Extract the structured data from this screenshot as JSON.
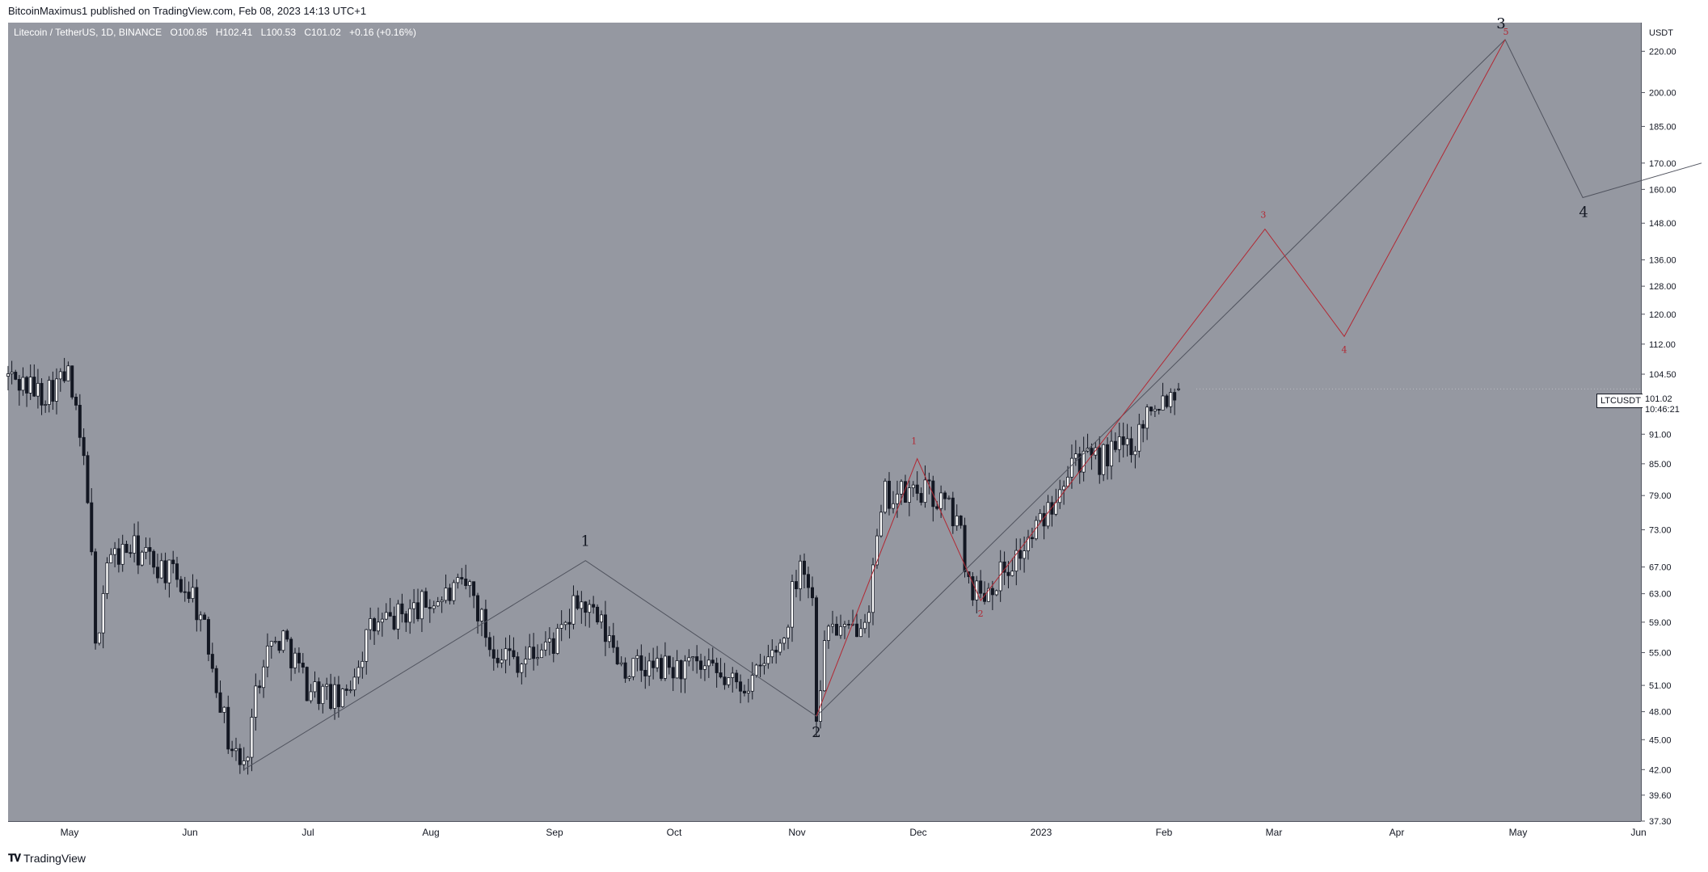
{
  "header": {
    "publish_line": "BitcoinMaximus1 published on TradingView.com, Feb 08, 2023 14:13 UTC+1"
  },
  "legend": {
    "symbol": "Litecoin / TetherUS, 1D, BINANCE",
    "open_label": "O",
    "open": "100.85",
    "high_label": "H",
    "high": "102.41",
    "low_label": "L",
    "low": "100.53",
    "close_label": "C",
    "close": "101.02",
    "change": "+0.16 (+0.16%)"
  },
  "price_axis": {
    "currency": "USDT",
    "labels": [
      "220.00",
      "200.00",
      "185.00",
      "170.00",
      "160.00",
      "148.00",
      "136.00",
      "128.00",
      "120.00",
      "112.00",
      "104.50",
      "91.00",
      "85.00",
      "79.00",
      "73.00",
      "67.00",
      "63.00",
      "59.00",
      "55.00",
      "51.00",
      "48.00",
      "45.00",
      "42.00",
      "39.60",
      "37.30"
    ]
  },
  "last_price": {
    "symbol_tag": "LTCUSDT",
    "price": "101.02",
    "countdown": "10:46:21"
  },
  "time_axis": {
    "labels": [
      "May",
      "Jun",
      "Jul",
      "Aug",
      "Sep",
      "Oct",
      "Nov",
      "Dec",
      "2023",
      "Feb",
      "Mar",
      "Apr",
      "May",
      "Jun"
    ]
  },
  "footer": {
    "logo_text": "TradingView"
  },
  "colors": {
    "chart_bg": "#9598a1",
    "candle": "#131722",
    "primary_wave": "#50535e",
    "sub_wave": "#b22833",
    "axis_bg": "#ffffff"
  },
  "chart_data": {
    "type": "candlestick",
    "symbol": "LTCUSDT",
    "interval": "1D",
    "exchange": "BINANCE",
    "scale": "log",
    "ylim": [
      37.3,
      235
    ],
    "xlim": [
      "2022-04-18",
      "2023-06-20"
    ],
    "grid": false,
    "price_path": [
      [
        "2022-04-18",
        104
      ],
      [
        "2022-04-27",
        100
      ],
      [
        "2022-05-04",
        104
      ],
      [
        "2022-05-09",
        80
      ],
      [
        "2022-05-11",
        55
      ],
      [
        "2022-05-14",
        68
      ],
      [
        "2022-05-20",
        70
      ],
      [
        "2022-05-28",
        67
      ],
      [
        "2022-06-05",
        63
      ],
      [
        "2022-06-10",
        54
      ],
      [
        "2022-06-14",
        45
      ],
      [
        "2022-06-18",
        42
      ],
      [
        "2022-06-23",
        55
      ],
      [
        "2022-06-28",
        57
      ],
      [
        "2022-07-04",
        51
      ],
      [
        "2022-07-13",
        49
      ],
      [
        "2022-07-20",
        58
      ],
      [
        "2022-07-28",
        60
      ],
      [
        "2022-08-05",
        62
      ],
      [
        "2022-08-14",
        64
      ],
      [
        "2022-08-19",
        56
      ],
      [
        "2022-08-27",
        54
      ],
      [
        "2022-09-06",
        57
      ],
      [
        "2022-09-10",
        62
      ],
      [
        "2022-09-15",
        59
      ],
      [
        "2022-09-22",
        53
      ],
      [
        "2022-10-01",
        53
      ],
      [
        "2022-10-10",
        53
      ],
      [
        "2022-10-20",
        51
      ],
      [
        "2022-10-25",
        52
      ],
      [
        "2022-11-01",
        57
      ],
      [
        "2022-11-05",
        69
      ],
      [
        "2022-11-08",
        62
      ],
      [
        "2022-11-09",
        48
      ],
      [
        "2022-11-12",
        59
      ],
      [
        "2022-11-17",
        57
      ],
      [
        "2022-11-22",
        62
      ],
      [
        "2022-11-26",
        79
      ],
      [
        "2022-12-01",
        79
      ],
      [
        "2022-12-05",
        80
      ],
      [
        "2022-12-10",
        78
      ],
      [
        "2022-12-14",
        75
      ],
      [
        "2022-12-17",
        65
      ],
      [
        "2022-12-20",
        63
      ],
      [
        "2022-12-25",
        66
      ],
      [
        "2022-12-31",
        70
      ],
      [
        "2023-01-05",
        75
      ],
      [
        "2023-01-08",
        80
      ],
      [
        "2023-01-12",
        87
      ],
      [
        "2023-01-17",
        85
      ],
      [
        "2023-01-22",
        87
      ],
      [
        "2023-01-28",
        90
      ],
      [
        "2023-02-01",
        98
      ],
      [
        "2023-02-04",
        99
      ],
      [
        "2023-02-08",
        101.02
      ]
    ],
    "primary_wave": {
      "points": [
        [
          "2022-06-18",
          42
        ],
        [
          "2022-09-12",
          68
        ],
        [
          "2022-11-09",
          47.5
        ],
        [
          "2023-05-01",
          226
        ],
        [
          "2023-05-21",
          157
        ],
        [
          "2023-06-20",
          170
        ]
      ],
      "labels": [
        {
          "text": "1",
          "x": "2022-09-12",
          "y": 68
        },
        {
          "text": "2",
          "x": "2022-11-09",
          "y": 47.5
        },
        {
          "text": "3",
          "x": "2023-05-01",
          "y": 226
        },
        {
          "text": "4",
          "x": "2023-05-21",
          "y": 157
        }
      ]
    },
    "sub_wave": {
      "points": [
        [
          "2022-11-09",
          47.5
        ],
        [
          "2022-12-04",
          86
        ],
        [
          "2022-12-20",
          62
        ],
        [
          "2023-03-02",
          146
        ],
        [
          "2023-03-22",
          114
        ],
        [
          "2023-05-01",
          226
        ]
      ],
      "labels": [
        {
          "text": "1",
          "x": "2022-12-04",
          "y": 86
        },
        {
          "text": "2",
          "x": "2022-12-20",
          "y": 62
        },
        {
          "text": "3",
          "x": "2023-03-02",
          "y": 146
        },
        {
          "text": "4",
          "x": "2023-03-22",
          "y": 114
        },
        {
          "text": "5",
          "x": "2023-05-01",
          "y": 226
        }
      ]
    }
  }
}
